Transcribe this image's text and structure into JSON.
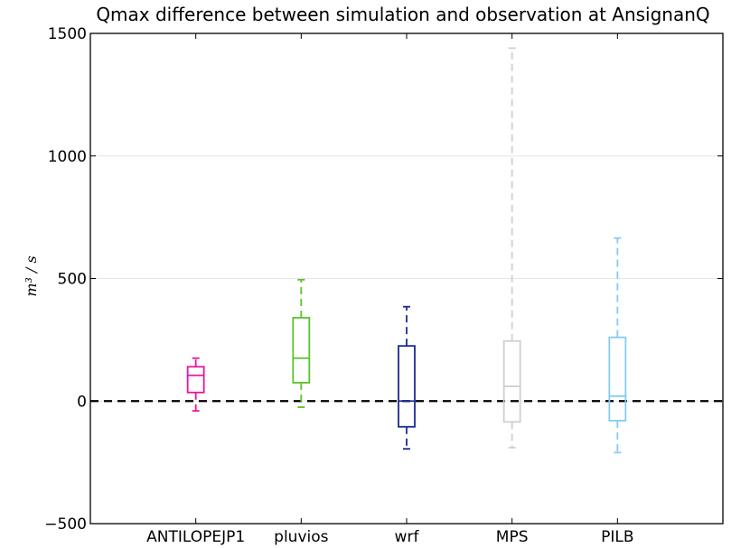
{
  "chart_data": {
    "type": "box",
    "title": "Qmax difference between simulation and observation at AnsignanQ",
    "ylabel": "m³ / s",
    "ylim": [
      -500,
      1500
    ],
    "yticks": [
      -500,
      0,
      500,
      1000,
      1500
    ],
    "ytick_labels": [
      "−500",
      "0",
      "500",
      "1000",
      "1500"
    ],
    "grid": "horizontal",
    "reference_line": {
      "y": 0,
      "style": "dashed",
      "color": "#000000"
    },
    "categories": [
      "ANTILOPEJP1",
      "pluvios",
      "wrf",
      "MPS",
      "PILB"
    ],
    "series": [
      {
        "name": "ANTILOPEJP1",
        "color": "#e8169f",
        "whisker_low": -40,
        "q1": 35,
        "median": 105,
        "q3": 140,
        "whisker_high": 175
      },
      {
        "name": "pluvios",
        "color": "#5cc12a",
        "whisker_low": -25,
        "q1": 75,
        "median": 175,
        "q3": 340,
        "whisker_high": 495
      },
      {
        "name": "wrf",
        "color": "#1c2a96",
        "whisker_low": -195,
        "q1": -105,
        "median": 0,
        "q3": 225,
        "whisker_high": 385
      },
      {
        "name": "MPS",
        "color": "#cfcfcf",
        "whisker_low": -190,
        "q1": -85,
        "median": 60,
        "q3": 245,
        "whisker_high": 1440
      },
      {
        "name": "PILB",
        "color": "#86cbef",
        "whisker_low": -210,
        "q1": -80,
        "median": 20,
        "q3": 260,
        "whisker_high": 665
      }
    ]
  }
}
